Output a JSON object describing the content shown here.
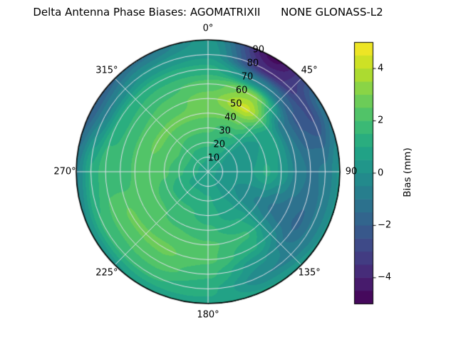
{
  "chart_data": {
    "type": "heatmap",
    "subtype": "filled-contour",
    "projection": "polar",
    "title": "Delta Antenna Phase Biases: AGOMATRIXII      NONE GLONASS-L2",
    "azimuth_direction": "clockwise",
    "azimuth_zero": "top",
    "azimuth_tick_labels": [
      "0°",
      "45°",
      "90",
      "135°",
      "180°",
      "225°",
      "270°",
      "315°"
    ],
    "azimuth_tick_angles": [
      0,
      45,
      90,
      135,
      180,
      225,
      270,
      315
    ],
    "radial_tick_labels": [
      "10",
      "20",
      "30",
      "40",
      "50",
      "60",
      "70",
      "80",
      "90"
    ],
    "radial_tick_values": [
      10,
      20,
      30,
      40,
      50,
      60,
      70,
      80,
      90
    ],
    "radial_label_angle_deg": 22.5,
    "r_max": 90,
    "grid_rings": [
      10,
      20,
      30,
      40,
      50,
      60,
      70,
      80
    ],
    "grid_spokes_deg": [
      0,
      45,
      90,
      135,
      180,
      225,
      270,
      315
    ],
    "colorbar": {
      "label": "Bias (mm)",
      "tick_values": [
        -4,
        -2,
        0,
        2,
        4
      ],
      "tick_labels": [
        "−4",
        "−2",
        "0",
        "2",
        "4"
      ],
      "vmin": -5,
      "vmax": 5,
      "level_step": 0.5,
      "colormap": "viridis",
      "viridis_stops": [
        "#440154",
        "#482475",
        "#414487",
        "#355f8d",
        "#2a788e",
        "#21918c",
        "#22a884",
        "#44bf70",
        "#7ad151",
        "#bddf26",
        "#fde725"
      ]
    },
    "grid": {
      "azimuths_deg": [
        0,
        30,
        60,
        90,
        120,
        150,
        180,
        210,
        240,
        270,
        300,
        330
      ],
      "radii": [
        0,
        10,
        20,
        30,
        40,
        50,
        60,
        70,
        80,
        90
      ],
      "bias_mm": [
        [
          0.6,
          1.0,
          1.6,
          2.1,
          2.6,
          2.8,
          2.2,
          1.2,
          0.4,
          0.2
        ],
        [
          0.6,
          0.9,
          1.1,
          1.6,
          2.6,
          4.2,
          3.2,
          -0.6,
          -3.8,
          -4.7
        ],
        [
          0.6,
          0.5,
          0.2,
          0.1,
          0.5,
          0.6,
          -1.0,
          -2.1,
          -2.6,
          -1.2
        ],
        [
          0.6,
          0.4,
          0.1,
          0.5,
          1.1,
          0.4,
          -0.6,
          -1.1,
          -0.9,
          0.1
        ],
        [
          0.6,
          0.4,
          0.0,
          -0.3,
          -0.6,
          -1.1,
          -1.3,
          -1.6,
          -0.9,
          0.1
        ],
        [
          0.6,
          0.5,
          0.5,
          0.6,
          1.1,
          1.6,
          1.1,
          0.1,
          -0.5,
          0.6
        ],
        [
          0.6,
          0.8,
          1.1,
          1.3,
          1.6,
          2.1,
          2.1,
          1.6,
          1.1,
          0.9
        ],
        [
          0.6,
          0.9,
          1.2,
          1.6,
          1.9,
          2.3,
          2.6,
          2.3,
          1.6,
          0.6
        ],
        [
          0.6,
          0.9,
          1.1,
          1.6,
          2.1,
          2.1,
          2.6,
          2.1,
          1.6,
          0.1
        ],
        [
          0.6,
          1.1,
          1.6,
          2.1,
          2.3,
          2.1,
          1.6,
          1.9,
          1.1,
          -0.6
        ],
        [
          0.6,
          1.1,
          1.9,
          2.3,
          2.6,
          2.1,
          1.6,
          1.1,
          -0.6,
          -1.9
        ],
        [
          0.6,
          1.1,
          1.6,
          2.1,
          2.6,
          2.3,
          1.9,
          1.3,
          0.1,
          -1.1
        ]
      ]
    }
  },
  "colors": {
    "background": "#ffffff",
    "grid_line": "#e0e0ea",
    "outline": "#000000",
    "text": "#000000"
  }
}
